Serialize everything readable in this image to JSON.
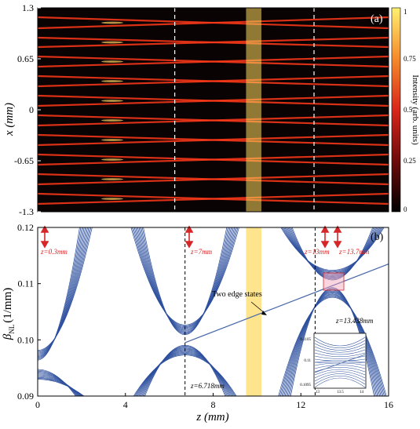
{
  "chart_data": [
    {
      "type": "heatmap",
      "panel_label": "(a)",
      "ylabel": "x (mm)",
      "yticks": [
        "1.3",
        "0.65",
        "0",
        "-0.65",
        "-1.3"
      ],
      "ylim": [
        -1.3,
        1.3
      ],
      "xlim": [
        0,
        16
      ],
      "colorbar_label": "Intensity (arb. units)",
      "colorbar_ticks": [
        "1",
        "0.75",
        "0.5",
        "0.25",
        "0"
      ],
      "highlight_band_z": [
        9.5,
        10.2
      ],
      "dashed_lines_z": [
        6.25,
        12.6
      ],
      "beam_rows": [
        {
          "x_left": 1.18,
          "x_right": 1.04
        },
        {
          "x_left": 1.04,
          "x_right": 1.18
        },
        {
          "x_left": 0.92,
          "x_right": 0.8
        },
        {
          "x_left": 0.8,
          "x_right": 0.92
        },
        {
          "x_left": 0.68,
          "x_right": 0.55
        },
        {
          "x_left": 0.55,
          "x_right": 0.68
        },
        {
          "x_left": 0.43,
          "x_right": 0.3
        },
        {
          "x_left": 0.3,
          "x_right": 0.43
        },
        {
          "x_left": 0.18,
          "x_right": 0.05
        },
        {
          "x_left": 0.05,
          "x_right": 0.18
        },
        {
          "x_left": -0.07,
          "x_right": -0.2
        },
        {
          "x_left": -0.2,
          "x_right": -0.07
        },
        {
          "x_left": -0.32,
          "x_right": -0.45
        },
        {
          "x_left": -0.45,
          "x_right": -0.32
        },
        {
          "x_left": -0.57,
          "x_right": -0.7
        },
        {
          "x_left": -0.7,
          "x_right": -0.57
        },
        {
          "x_left": -0.82,
          "x_right": -0.95
        },
        {
          "x_left": -0.95,
          "x_right": -0.82
        },
        {
          "x_left": -1.07,
          "x_right": -1.2
        },
        {
          "x_left": -1.2,
          "x_right": -1.07
        }
      ]
    },
    {
      "type": "line",
      "panel_label": "(b)",
      "xlabel": "z (mm)",
      "ylabel_main": "β",
      "ylabel_sub": "NL",
      "ylabel_unit": "(1/mm)",
      "xticks": [
        "0",
        "4",
        "8",
        "12",
        "16"
      ],
      "yticks": [
        "0.12",
        "0.11",
        "0.10",
        "0.09"
      ],
      "xlim": [
        0,
        16
      ],
      "ylim": [
        0.09,
        0.12
      ],
      "highlight_band_z": [
        9.5,
        10.2
      ],
      "dashed_lines_z": [
        6.718,
        12.65
      ],
      "edge_state": {
        "z": [
          6.718,
          16
        ],
        "beta": [
          0.0995,
          0.1135
        ]
      },
      "band_gaps": [
        {
          "z": 0.0,
          "upper": 0.0963,
          "lower": 0.0953
        },
        {
          "z": 6.718,
          "upper": 0.1007,
          "lower": 0.0995
        },
        {
          "z": 13.438,
          "upper": 0.1102,
          "lower": 0.1095
        }
      ],
      "annotations": {
        "z1": "z=0.3mm",
        "z2": "z=7mm",
        "z3": "z=13mm",
        "z4": "z=13.7mm",
        "z5": "z=13.438mm",
        "z6": "z=6.718mm",
        "edge": "Two edge states"
      },
      "inset": {
        "yticks": [
          "0.1105",
          "0.11",
          "0.1095"
        ],
        "xticks": [
          "13",
          "13.5",
          "14"
        ]
      }
    }
  ],
  "colors": {
    "beam": "#ff3a1a",
    "beam_core": "#ffd060",
    "heat_bg": "#0a0304",
    "band_line": "#2c4f9e",
    "highlight": "#ffd85e",
    "annotation_red": "#d62728"
  }
}
